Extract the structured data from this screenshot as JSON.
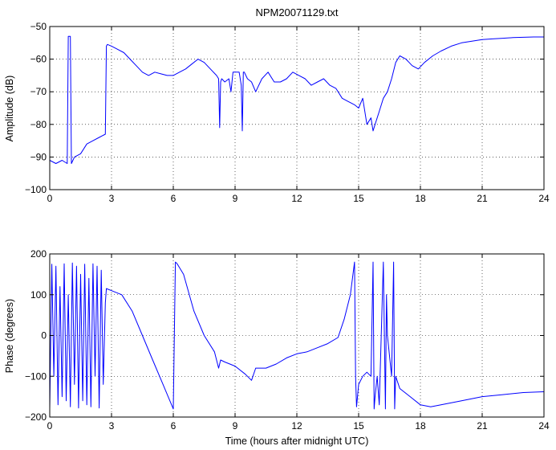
{
  "chart_data": [
    {
      "type": "line",
      "title": "NPM20071129.txt",
      "xlabel": "",
      "ylabel": "Amplitude (dB)",
      "xlim": [
        0,
        24
      ],
      "ylim": [
        -100,
        -50
      ],
      "xticks": [
        0,
        3,
        6,
        9,
        12,
        15,
        18,
        21,
        24
      ],
      "yticks": [
        -100,
        -90,
        -80,
        -70,
        -60,
        -50
      ],
      "grid": true,
      "color": "#0000ff",
      "series": [
        {
          "x": [
            0,
            0.3,
            0.6,
            0.85,
            0.9,
            0.95,
            1.0,
            1.05,
            1.2,
            1.5,
            1.8,
            2.1,
            2.4,
            2.7,
            2.75,
            2.8,
            3.0,
            3.3,
            3.6,
            3.9,
            4.2,
            4.5,
            4.8,
            5.1,
            5.4,
            5.7,
            6.0,
            6.3,
            6.6,
            6.9,
            7.2,
            7.5,
            7.8,
            8.1,
            8.2,
            8.25,
            8.3,
            8.35,
            8.5,
            8.7,
            8.8,
            8.9,
            9.0,
            9.2,
            9.3,
            9.35,
            9.4,
            9.45,
            9.6,
            9.8,
            10.0,
            10.3,
            10.6,
            10.9,
            11.2,
            11.5,
            11.8,
            12.1,
            12.4,
            12.7,
            13.0,
            13.3,
            13.6,
            13.9,
            14.2,
            14.5,
            14.8,
            15.0,
            15.2,
            15.4,
            15.6,
            15.7,
            15.8,
            16.0,
            16.2,
            16.4,
            16.6,
            16.8,
            17.0,
            17.3,
            17.6,
            17.9,
            18.2,
            18.6,
            19.0,
            19.5,
            20.0,
            20.5,
            21.0,
            21.5,
            22.0,
            22.5,
            23.0,
            23.5,
            24.0
          ],
          "y": [
            -91,
            -92,
            -91,
            -92,
            -53,
            -53,
            -53,
            -92,
            -90,
            -89,
            -86,
            -85,
            -84,
            -83,
            -56,
            -55.5,
            -56,
            -57,
            -58,
            -60,
            -62,
            -64,
            -65,
            -64,
            -64.5,
            -65,
            -65,
            -64,
            -63,
            -61.5,
            -60,
            -61,
            -63,
            -65,
            -66,
            -81,
            -67,
            -66,
            -67,
            -66,
            -70,
            -64,
            -64,
            -64,
            -68,
            -82,
            -64,
            -64,
            -66,
            -67,
            -70,
            -66,
            -64,
            -67,
            -67,
            -66,
            -64,
            -65,
            -66,
            -68,
            -67,
            -66,
            -68,
            -69,
            -72,
            -73,
            -74,
            -75,
            -72,
            -80,
            -78,
            -82,
            -80,
            -76,
            -72,
            -70,
            -66,
            -61,
            -59,
            -60,
            -62,
            -63,
            -61,
            -59,
            -57.5,
            -56,
            -55,
            -54.5,
            -54,
            -53.8,
            -53.6,
            -53.4,
            -53.3,
            -53.2,
            -53.2
          ]
        }
      ]
    },
    {
      "type": "line",
      "title": "",
      "xlabel": "Time (hours after midnight UTC)",
      "ylabel": "Phase (degrees)",
      "xlim": [
        0,
        24
      ],
      "ylim": [
        -200,
        200
      ],
      "xticks": [
        0,
        3,
        6,
        9,
        12,
        15,
        18,
        21,
        24
      ],
      "yticks": [
        -200,
        -100,
        0,
        100,
        200
      ],
      "grid": true,
      "color": "#0000ff",
      "series": [
        {
          "x": [
            0,
            0.1,
            0.2,
            0.3,
            0.4,
            0.5,
            0.6,
            0.7,
            0.8,
            0.9,
            1.0,
            1.1,
            1.2,
            1.3,
            1.4,
            1.5,
            1.6,
            1.7,
            1.8,
            1.9,
            2.0,
            2.1,
            2.2,
            2.3,
            2.4,
            2.5,
            2.6,
            2.7,
            2.75,
            3.0,
            3.5,
            4.0,
            4.5,
            5.0,
            5.5,
            6.0,
            6.1,
            6.15,
            6.2,
            6.5,
            7.0,
            7.5,
            8.0,
            8.2,
            8.3,
            8.5,
            9.0,
            9.5,
            9.8,
            10.0,
            10.5,
            11.0,
            11.5,
            12.0,
            12.5,
            13.0,
            13.5,
            14.0,
            14.3,
            14.6,
            14.8,
            14.85,
            14.9,
            15.0,
            15.2,
            15.4,
            15.6,
            15.7,
            15.75,
            15.8,
            15.9,
            16.0,
            16.2,
            16.3,
            16.35,
            16.4,
            16.6,
            16.7,
            16.75,
            16.8,
            17.0,
            17.5,
            18.0,
            18.5,
            19.0,
            19.5,
            20.0,
            21.0,
            22.0,
            23.0,
            24.0
          ],
          "y": [
            -180,
            175,
            -100,
            170,
            -170,
            120,
            -150,
            176,
            -160,
            100,
            -175,
            178,
            -120,
            170,
            -178,
            150,
            -160,
            175,
            -170,
            140,
            -175,
            176,
            -100,
            170,
            -178,
            160,
            -120,
            80,
            115,
            110,
            100,
            60,
            0,
            -60,
            -120,
            -180,
            180,
            178,
            175,
            150,
            60,
            0,
            -40,
            -80,
            -60,
            -65,
            -75,
            -95,
            -110,
            -80,
            -80,
            -70,
            -55,
            -45,
            -40,
            -30,
            -20,
            -5,
            40,
            100,
            180,
            -100,
            -175,
            -120,
            -100,
            -90,
            -100,
            180,
            -180,
            -150,
            -100,
            -170,
            180,
            -180,
            100,
            0,
            -100,
            180,
            -180,
            -100,
            -130,
            -150,
            -170,
            -175,
            -170,
            -165,
            -160,
            -150,
            -145,
            -140,
            -138
          ]
        }
      ]
    }
  ]
}
